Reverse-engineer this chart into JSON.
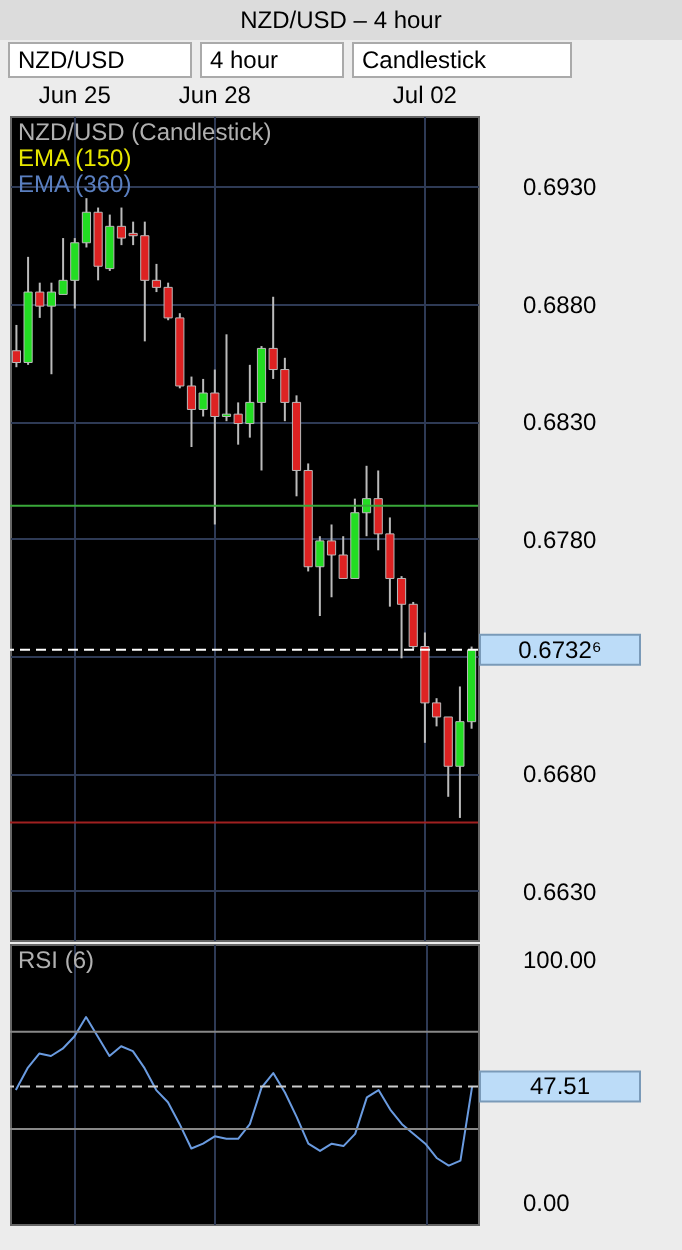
{
  "chart_data": [
    {
      "type": "candlestick",
      "title": "NZD/USD (Candlestick)",
      "annotations": [
        "NZD/USD – 4 hour",
        "NZD/USD",
        "4 hour",
        "Candlestick",
        "EMA (150)",
        "EMA (360)"
      ],
      "categories": [
        null,
        null,
        null,
        null,
        null,
        "Jun 25",
        null,
        null,
        null,
        null,
        null,
        null,
        null,
        null,
        null,
        null,
        null,
        "Jun 28",
        null,
        null,
        null,
        null,
        null,
        null,
        null,
        null,
        null,
        null,
        null,
        null,
        null,
        null,
        null,
        null,
        null,
        "Jul 02",
        null,
        null,
        null,
        null
      ],
      "ohlc": [
        [
          0.686,
          0.6871,
          0.6853,
          0.6855
        ],
        [
          0.6855,
          0.69,
          0.6854,
          0.6885
        ],
        [
          0.6885,
          0.6889,
          0.6874,
          0.6879
        ],
        [
          0.6879,
          0.6889,
          0.685,
          0.6885
        ],
        [
          0.6884,
          0.6908,
          0.6884,
          0.689
        ],
        [
          0.689,
          0.6908,
          0.6878,
          0.6906
        ],
        [
          0.6906,
          0.6925,
          0.6904,
          0.6919
        ],
        [
          0.6919,
          0.6921,
          0.689,
          0.6896
        ],
        [
          0.6895,
          0.6918,
          0.6894,
          0.6913
        ],
        [
          0.6913,
          0.6921,
          0.6905,
          0.6908
        ],
        [
          0.691,
          0.6915,
          0.6905,
          0.6909
        ],
        [
          0.6909,
          0.6915,
          0.6864,
          0.689
        ],
        [
          0.689,
          0.6897,
          0.6885,
          0.6887
        ],
        [
          0.6887,
          0.6889,
          0.6873,
          0.6874
        ],
        [
          0.6874,
          0.6876,
          0.6844,
          0.6845
        ],
        [
          0.6845,
          0.6849,
          0.6819,
          0.6835
        ],
        [
          0.6835,
          0.6848,
          0.6832,
          0.6842
        ],
        [
          0.6842,
          0.6852,
          0.6786,
          0.6832
        ],
        [
          0.6832,
          0.6867,
          0.683,
          0.6833
        ],
        [
          0.6833,
          0.6838,
          0.682,
          0.6829
        ],
        [
          0.6829,
          0.6854,
          0.6823,
          0.6838
        ],
        [
          0.6838,
          0.6862,
          0.6809,
          0.6861
        ],
        [
          0.6861,
          0.6883,
          0.6848,
          0.6852
        ],
        [
          0.6852,
          0.6857,
          0.683,
          0.6838
        ],
        [
          0.6838,
          0.6841,
          0.6798,
          0.6809
        ],
        [
          0.6809,
          0.6812,
          0.6766,
          0.6768
        ],
        [
          0.6768,
          0.6781,
          0.6747,
          0.6779
        ],
        [
          0.6779,
          0.6786,
          0.6755,
          0.6773
        ],
        [
          0.6773,
          0.6781,
          0.6763,
          0.6763
        ],
        [
          0.6763,
          0.6797,
          0.6763,
          0.6791
        ],
        [
          0.6791,
          0.6811,
          0.6781,
          0.6797
        ],
        [
          0.6797,
          0.6809,
          0.6775,
          0.6782
        ],
        [
          0.6782,
          0.6789,
          0.6751,
          0.6763
        ],
        [
          0.6763,
          0.6764,
          0.6729,
          0.6752
        ],
        [
          0.6752,
          0.6753,
          0.6733,
          0.6734
        ],
        [
          0.6734,
          0.674,
          0.6693,
          0.671
        ],
        [
          0.671,
          0.6712,
          0.67,
          0.6704
        ],
        [
          0.6704,
          0.6704,
          0.667,
          0.6683
        ],
        [
          0.6683,
          0.6717,
          0.6661,
          0.6702
        ],
        [
          0.6702,
          0.6734,
          0.6699,
          0.67326
        ]
      ],
      "ylim": [
        0.6609,
        0.696
      ],
      "yticks": [
        {
          "value": 0.663,
          "label": "0.6630"
        },
        {
          "value": 0.668,
          "label": "0.6680"
        },
        {
          "value": 0.673,
          "label": null
        },
        {
          "value": 0.678,
          "label": "0.6780"
        },
        {
          "value": 0.683,
          "label": "0.6830"
        },
        {
          "value": 0.688,
          "label": "0.6880"
        },
        {
          "value": 0.693,
          "label": "0.6930"
        }
      ],
      "ref_lines": [
        {
          "axis": "y",
          "value": 0.6794,
          "label": null,
          "color": "#3aa83a"
        },
        {
          "axis": "y",
          "value": 0.6659,
          "label": null,
          "color": "#a02020"
        },
        {
          "axis": "y",
          "value": 0.67326,
          "label": "0.6732⁶",
          "color": "#ffffff",
          "line_style": "dashed"
        }
      ],
      "grid": true
    },
    {
      "type": "line",
      "title": "RSI (6)",
      "categories": [
        null,
        null,
        null,
        null,
        null,
        null,
        null,
        null,
        null,
        null,
        null,
        null,
        null,
        null,
        null,
        null,
        null,
        null,
        null,
        null,
        null,
        null,
        null,
        null,
        null,
        null,
        null,
        null,
        null,
        null,
        null,
        null,
        null,
        null,
        null,
        null,
        null,
        null,
        null,
        null
      ],
      "series": [
        {
          "color": "#6a9be0",
          "values": [
            46,
            55,
            61,
            60,
            63,
            68,
            76,
            68,
            60,
            64,
            62,
            55,
            46,
            41,
            32,
            22,
            24,
            27,
            26,
            26,
            32,
            47,
            53,
            45,
            35,
            24,
            21,
            24,
            23,
            28,
            43,
            46,
            38,
            32,
            28,
            24,
            18,
            15,
            17,
            47.51
          ]
        }
      ],
      "ylim": [
        -9,
        106
      ],
      "yticks": [
        {
          "value": 0,
          "label": "0.00"
        },
        {
          "value": 100,
          "label": "100.00"
        }
      ],
      "ref_lines": [
        {
          "axis": "y",
          "value": 70,
          "label": null,
          "color": "#888888"
        },
        {
          "axis": "y",
          "value": 30,
          "label": null,
          "color": "#888888"
        },
        {
          "axis": "y",
          "value": 47.51,
          "label": "47.51",
          "color": "#cccccc",
          "line_style": "dashed"
        }
      ],
      "tick_labels": "y",
      "grid": "x"
    }
  ]
}
